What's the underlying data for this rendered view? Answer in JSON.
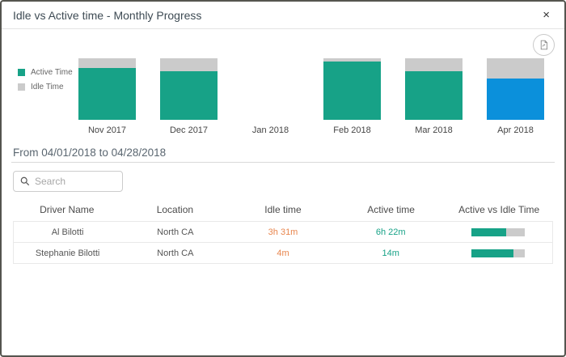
{
  "header": {
    "title": "Idle vs Active time - Monthly Progress",
    "close_label": "×"
  },
  "toolbar": {
    "export_button": "export-report-icon"
  },
  "chart_data": {
    "type": "bar",
    "stacked": true,
    "title": "Idle vs Active time - Monthly Progress",
    "categories": [
      "Nov 2017",
      "Dec 2017",
      "Jan 2018",
      "Feb 2018",
      "Mar 2018",
      "Apr 2018"
    ],
    "series": [
      {
        "name": "Active Time",
        "values": [
          84,
          79,
          0,
          95,
          79,
          67
        ],
        "color": "#17a287"
      },
      {
        "name": "Idle Time",
        "values": [
          16,
          21,
          0,
          5,
          21,
          33
        ],
        "color": "#cbcbcb"
      }
    ],
    "unit": "percent of bar height",
    "ylim": [
      0,
      100
    ],
    "grid": false,
    "legend_position": "left",
    "highlight": {
      "category": "Apr 2018",
      "series": "Active Time",
      "color": "#0b90db",
      "meaning": "selected month"
    }
  },
  "filter": {
    "date_range": "From 04/01/2018 to 04/28/2018"
  },
  "search": {
    "placeholder": "Search"
  },
  "table": {
    "columns": [
      "Driver Name",
      "Location",
      "Idle time",
      "Active time",
      "Active vs Idle Time"
    ],
    "rows": [
      {
        "driver": "Al Bilotti",
        "location": "North CA",
        "idle": "3h 31m",
        "active": "6h 22m",
        "active_pct": 64
      },
      {
        "driver": "Stephanie Bilotti",
        "location": "North CA",
        "idle": "4m",
        "active": "14m",
        "active_pct": 78
      }
    ]
  },
  "colors": {
    "active": "#17a287",
    "idle": "#cbcbcb",
    "selected": "#0b90db",
    "idle_text": "#e8854d",
    "active_text": "#17a287"
  }
}
